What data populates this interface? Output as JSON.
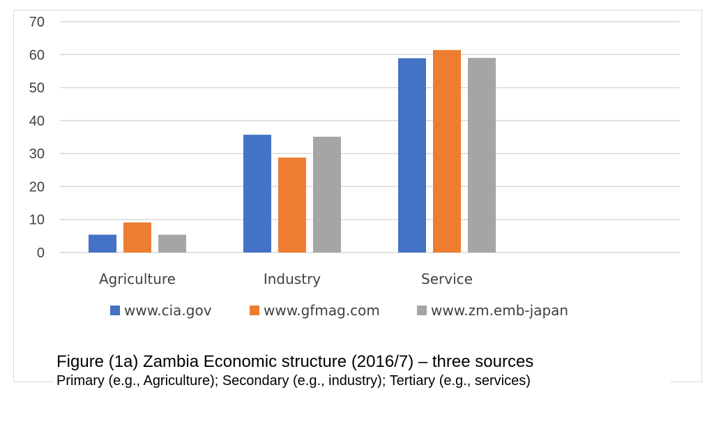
{
  "chart_data": {
    "type": "bar",
    "categories": [
      "Agriculture",
      "Industry",
      "Service"
    ],
    "series": [
      {
        "name": "www.cia.gov",
        "color": "#4472c4",
        "values": [
          5.4,
          35.7,
          58.9
        ]
      },
      {
        "name": "www.gfmag.com",
        "color": "#ed7d31",
        "values": [
          9.1,
          28.8,
          61.4
        ]
      },
      {
        "name": "www.zm.emb-japan",
        "color": "#a5a5a5",
        "values": [
          5.4,
          35.1,
          59.0
        ]
      }
    ],
    "ylim": [
      0,
      70
    ],
    "yticks": [
      "0",
      "10",
      "20",
      "30",
      "40",
      "50",
      "60",
      "70"
    ],
    "grid": true,
    "legend_position": "bottom",
    "gridline_color": "#d9d9d9"
  },
  "caption": {
    "title": "Figure (1a) Zambia Economic structure (2016/7) – three sources",
    "body": "Primary (e.g., Agriculture); Secondary (e.g., industry); Tertiary (e.g., services)"
  }
}
